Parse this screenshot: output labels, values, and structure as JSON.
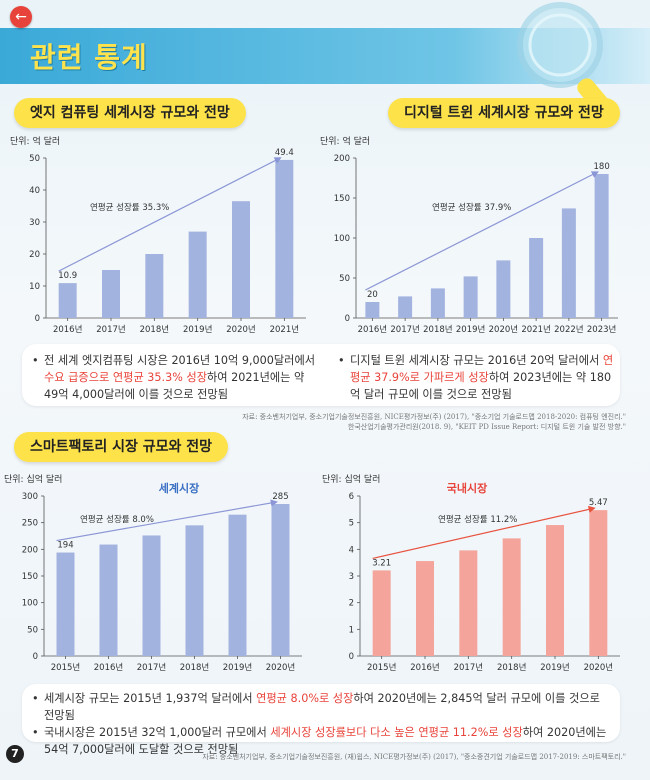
{
  "header": {
    "title": "관련 통계",
    "back_icon": "←",
    "page_number": "7"
  },
  "sections": {
    "edge": {
      "title": "엣지 컴퓨팅 세계시장 규모와 전망"
    },
    "twin": {
      "title": "디지털 트윈 세계시장 규모와 전망"
    },
    "smart": {
      "title": "스마트팩토리 시장 규모와 전망"
    }
  },
  "bullets_top": {
    "edge": [
      {
        "pre": "전 세계 엣지컴퓨팅 시장은 2016년 10억 9,000달러에서 ",
        "hl": "수요 급증으로 연평균 35.3% 성장",
        "post": "하여 2021년에는 약 49억 4,000달러에 이를 것으로 전망됨"
      }
    ],
    "twin": [
      {
        "pre": "디지털 트윈 세계시장 규모는 2016년 20억 달러에서 ",
        "hl": "연평균 37.9%로 가파르게 성장",
        "post": "하여 2023년에는 약 180억 달러 규모에 이를 것으로 전망됨"
      }
    ]
  },
  "source_top": [
    "자료: 중소벤처기업부, 중소기업기술정보진흥원, NICE평가정보(주) (2017), \"중소기업 기술로드맵 2018-2020: 컴퓨팅 엔진리.\"",
    "한국산업기술평가관리원(2018. 9), \"KEIT PD Issue Report: 디지털 트윈 기술 발전 방향.\""
  ],
  "bullets_bottom": [
    {
      "pre": "세계시장 규모는 2015년 1,937억 달러에서 ",
      "hl": "연평균 8.0%로 성장",
      "post": "하여 2020년에는 2,845억 달러 규모에 이를 것으로 전망됨"
    },
    {
      "pre": "국내시장은 2015년 32억 1,000달러 규모에서 ",
      "hl": "세계시장 성장률보다 다소 높은 연평균 11.2%로 성장",
      "post": "하여 2020년에는 54억 7,000달러에 도달할 것으로 전망됨"
    }
  ],
  "source_bottom": "자료: 중소벤처기업부, 중소기업기술정보진흥원, (재)윕스, NICE평가정보(주) (2017), \"중소중견기업 기술로드맵 2017-2019: 스마트팩토리.\"",
  "chart_data": [
    {
      "type": "bar",
      "title": "",
      "unit_label": "단위: 억 달러",
      "categories": [
        "2016년",
        "2017년",
        "2018년",
        "2019년",
        "2020년",
        "2021년"
      ],
      "values": [
        10.9,
        15,
        20,
        27,
        36.5,
        49.4
      ],
      "labels_shown": {
        "0": "10.9",
        "5": "49.4"
      },
      "ylim": [
        0,
        50
      ],
      "yticks": [
        0,
        10,
        20,
        30,
        40,
        50
      ],
      "annotation": "연평균 성장률 35.3%",
      "bar_color": "#a3b3df",
      "arrow_color": "#8b96d6"
    },
    {
      "type": "bar",
      "title": "",
      "unit_label": "단위: 억 달러",
      "categories": [
        "2016년",
        "2017년",
        "2018년",
        "2019년",
        "2020년",
        "2021년",
        "2022년",
        "2023년"
      ],
      "values": [
        20,
        27,
        37,
        52,
        72,
        100,
        137,
        180
      ],
      "labels_shown": {
        "0": "20",
        "7": "180"
      },
      "ylim": [
        0,
        200
      ],
      "yticks": [
        0,
        50,
        100,
        150,
        200
      ],
      "annotation": "연평균 성장률 37.9%",
      "bar_color": "#a3b3df",
      "arrow_color": "#8b96d6"
    },
    {
      "type": "bar",
      "title": "세계시장",
      "unit_label": "단위: 십억 달러",
      "categories": [
        "2015년",
        "2016년",
        "2017년",
        "2018년",
        "2019년",
        "2020년"
      ],
      "values": [
        194,
        209,
        226,
        245,
        265,
        285
      ],
      "labels_shown": {
        "0": "194",
        "5": "285"
      },
      "ylim": [
        0,
        300
      ],
      "yticks": [
        0,
        50,
        100,
        150,
        200,
        250,
        300
      ],
      "annotation": "연평균 성장률 8.0%",
      "bar_color": "#a3b3df",
      "arrow_color": "#8b96d6",
      "title_color": "#3a6fc4"
    },
    {
      "type": "bar",
      "title": "국내시장",
      "unit_label": "단위: 십억 달러",
      "categories": [
        "2015년",
        "2016년",
        "2017년",
        "2018년",
        "2019년",
        "2020년"
      ],
      "values": [
        3.21,
        3.56,
        3.96,
        4.41,
        4.91,
        5.47
      ],
      "labels_shown": {
        "0": "3.21",
        "5": "5.47"
      },
      "ylim": [
        0,
        6
      ],
      "yticks": [
        0,
        1,
        2,
        3,
        4,
        5,
        6
      ],
      "annotation": "연평균 성장률 11.2%",
      "bar_color": "#f4a49a",
      "arrow_color": "#e8533f",
      "title_color": "#e8433a"
    }
  ]
}
